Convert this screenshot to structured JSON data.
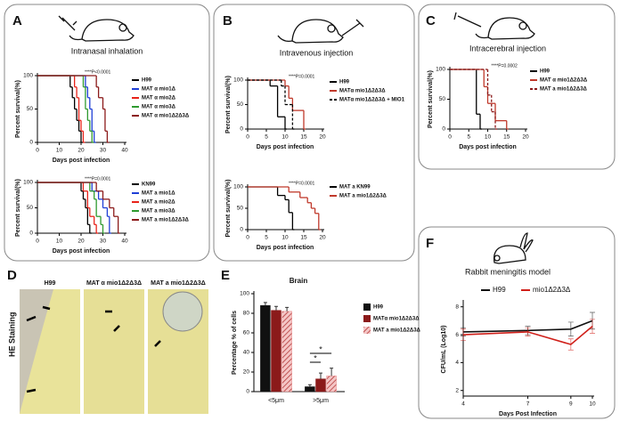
{
  "panels": [
    {
      "label": "A",
      "title": "Intranasal inhalation"
    },
    {
      "label": "B",
      "title": "Intravenous injection"
    },
    {
      "label": "C",
      "title": "Intracerebral injection"
    },
    {
      "label": "D",
      "title": "HE Staining",
      "images": [
        "H99",
        "MAT α mio1Δ2Δ3Δ",
        "MAT a mio1Δ2Δ3Δ"
      ]
    },
    {
      "label": "E"
    },
    {
      "label": "F",
      "title": "Rabbit meningitis model"
    }
  ],
  "chart_data": [
    {
      "type": "step",
      "xlabel": "Days post infection",
      "ylabel": "Percent survival(%)",
      "annotation": "****P<0.0001",
      "xlim": [
        0,
        40
      ],
      "ylim": [
        0,
        100
      ],
      "xticks": [
        0,
        10,
        20,
        30,
        40
      ],
      "yticks": [
        0,
        50,
        100
      ],
      "series": [
        {
          "name": "H99",
          "color": "#000000",
          "x": [
            0,
            15,
            16,
            17,
            18,
            19,
            20
          ],
          "values": [
            100,
            83,
            67,
            50,
            33,
            17,
            0
          ]
        },
        {
          "name": "MAT α mio1Δ",
          "color": "#1f3fd6",
          "x": [
            0,
            22,
            23,
            24,
            25,
            26
          ],
          "values": [
            100,
            83,
            67,
            50,
            17,
            0
          ]
        },
        {
          "name": "MAT α mio2Δ",
          "color": "#e8231a",
          "x": [
            0,
            17,
            18,
            19,
            20,
            21
          ],
          "values": [
            100,
            83,
            67,
            33,
            17,
            0
          ]
        },
        {
          "name": "MAT α mio3Δ",
          "color": "#2f9a2f",
          "x": [
            0,
            21,
            22,
            23,
            24,
            25
          ],
          "values": [
            100,
            83,
            50,
            33,
            17,
            0
          ]
        },
        {
          "name": "MAT α mio1Δ2Δ3Δ",
          "color": "#8b1a1a",
          "x": [
            0,
            27,
            28,
            30,
            31,
            32
          ],
          "values": [
            100,
            83,
            67,
            50,
            17,
            0
          ]
        }
      ]
    },
    {
      "type": "step",
      "xlabel": "Days post infection",
      "ylabel": "Percent survival(%)",
      "annotation": "****P=0.0001",
      "xlim": [
        0,
        40
      ],
      "ylim": [
        0,
        100
      ],
      "xticks": [
        0,
        10,
        20,
        30,
        40
      ],
      "yticks": [
        0,
        50,
        100
      ],
      "series": [
        {
          "name": "KN99",
          "color": "#000000",
          "x": [
            0,
            20,
            21,
            22,
            23,
            24
          ],
          "values": [
            100,
            83,
            67,
            50,
            17,
            0
          ]
        },
        {
          "name": "MAT a mio1Δ",
          "color": "#1f3fd6",
          "x": [
            0,
            25,
            28,
            30,
            32,
            33
          ],
          "values": [
            100,
            83,
            67,
            50,
            33,
            0
          ]
        },
        {
          "name": "MAT a mio2Δ",
          "color": "#e8231a",
          "x": [
            0,
            21,
            23,
            24,
            26,
            27
          ],
          "values": [
            100,
            83,
            50,
            33,
            17,
            0
          ]
        },
        {
          "name": "MAT a mio3Δ",
          "color": "#2f9a2f",
          "x": [
            0,
            24,
            26,
            27,
            29,
            30
          ],
          "values": [
            100,
            83,
            67,
            33,
            17,
            0
          ]
        },
        {
          "name": "MAT a mio1Δ2Δ3Δ",
          "color": "#8b1a1a",
          "x": [
            0,
            27,
            30,
            33,
            35,
            37
          ],
          "values": [
            100,
            83,
            67,
            50,
            33,
            0
          ]
        }
      ]
    },
    {
      "type": "step",
      "xlabel": "Days post infection",
      "ylabel": "Percent survival(%)",
      "annotation": "****P=0.0001",
      "xlim": [
        0,
        20
      ],
      "ylim": [
        0,
        100
      ],
      "xticks": [
        0,
        5,
        10,
        15,
        20
      ],
      "yticks": [
        0,
        50,
        100
      ],
      "series": [
        {
          "name": "H99",
          "color": "#000000",
          "x": [
            0,
            6,
            8,
            10
          ],
          "values": [
            100,
            88,
            25,
            0
          ]
        },
        {
          "name": "MATα mio1Δ2Δ3Δ",
          "color": "#c0392b",
          "x": [
            0,
            10,
            11,
            12,
            15
          ],
          "values": [
            100,
            88,
            63,
            38,
            0
          ]
        },
        {
          "name": "MATα mio1Δ2Δ3Δ + MIO1",
          "color": "#000000",
          "dashed": true,
          "x": [
            0,
            9,
            10,
            12
          ],
          "values": [
            100,
            88,
            50,
            0
          ]
        }
      ]
    },
    {
      "type": "step",
      "xlabel": "Days post infection",
      "ylabel": "Percent survival(%)",
      "annotation": "****P=0.0001",
      "xlim": [
        0,
        20
      ],
      "ylim": [
        0,
        100
      ],
      "xticks": [
        0,
        5,
        10,
        15,
        20
      ],
      "yticks": [
        0,
        50,
        100
      ],
      "series": [
        {
          "name": "MAT a KN99",
          "color": "#000000",
          "x": [
            0,
            8,
            10,
            11,
            12
          ],
          "values": [
            100,
            80,
            70,
            40,
            0
          ]
        },
        {
          "name": "MAT a mio1Δ2Δ3Δ",
          "color": "#c0392b",
          "x": [
            0,
            11,
            14,
            16,
            17,
            18,
            19
          ],
          "values": [
            100,
            88,
            75,
            63,
            50,
            38,
            0
          ]
        }
      ]
    },
    {
      "type": "step",
      "xlabel": "Days post infection",
      "ylabel": "Percent survival(%)",
      "annotation": "****P=0.0002",
      "xlim": [
        0,
        20
      ],
      "ylim": [
        0,
        100
      ],
      "xticks": [
        0,
        5,
        10,
        15,
        20
      ],
      "yticks": [
        0,
        50,
        100
      ],
      "series": [
        {
          "name": "H99",
          "color": "#000000",
          "x": [
            0,
            7,
            8
          ],
          "values": [
            100,
            25,
            0
          ]
        },
        {
          "name": "MAT α mio1Δ2Δ3Δ",
          "color": "#c0392b",
          "x": [
            0,
            9,
            10,
            12,
            15
          ],
          "values": [
            100,
            71,
            43,
            14,
            0
          ]
        },
        {
          "name": "MAT a mio1Δ2Δ3Δ",
          "color": "#8b1a1a",
          "dashed": true,
          "x": [
            0,
            10,
            11,
            12
          ],
          "values": [
            100,
            57,
            29,
            0
          ]
        }
      ]
    },
    {
      "type": "bar",
      "title": "Brain",
      "ylabel": "Percentage % of cells",
      "annotation": [
        "*",
        "*"
      ],
      "categories": [
        "<5μm",
        ">5μm"
      ],
      "ylim": [
        0,
        100
      ],
      "yticks": [
        0,
        20,
        40,
        60,
        80,
        100
      ],
      "series": [
        {
          "name": "H99",
          "color": "#111111",
          "values": [
            88,
            5
          ],
          "errors": [
            3,
            2
          ]
        },
        {
          "name": "MATα mio1Δ2Δ3Δ",
          "color": "#8b1a1a",
          "values": [
            83,
            13
          ],
          "errors": [
            4,
            6
          ]
        },
        {
          "name": "MAT a mio1Δ2Δ3Δ",
          "color": "#e88a8a",
          "hatch": true,
          "values": [
            82,
            16
          ],
          "errors": [
            4,
            8
          ]
        }
      ]
    },
    {
      "type": "line",
      "xlabel": "Days Post Infection",
      "ylabel": "CFU/mL (Log10)",
      "x": [
        4,
        7,
        9,
        10
      ],
      "xlim": [
        4,
        10
      ],
      "xticks": [
        4,
        7,
        9,
        10
      ],
      "ylim": [
        1.6,
        8.3
      ],
      "yticks": [
        2,
        4,
        6,
        8
      ],
      "series": [
        {
          "name": "H99",
          "color": "#111111",
          "values": [
            6.2,
            6.3,
            6.4,
            7.0
          ],
          "errors": [
            0.3,
            0.3,
            0.5,
            0.6
          ]
        },
        {
          "name": "mio1Δ2Δ3Δ",
          "color": "#d0201a",
          "values": [
            6.0,
            6.2,
            5.3,
            6.6
          ],
          "errors": [
            0.4,
            0.3,
            0.4,
            0.5
          ]
        }
      ]
    }
  ]
}
